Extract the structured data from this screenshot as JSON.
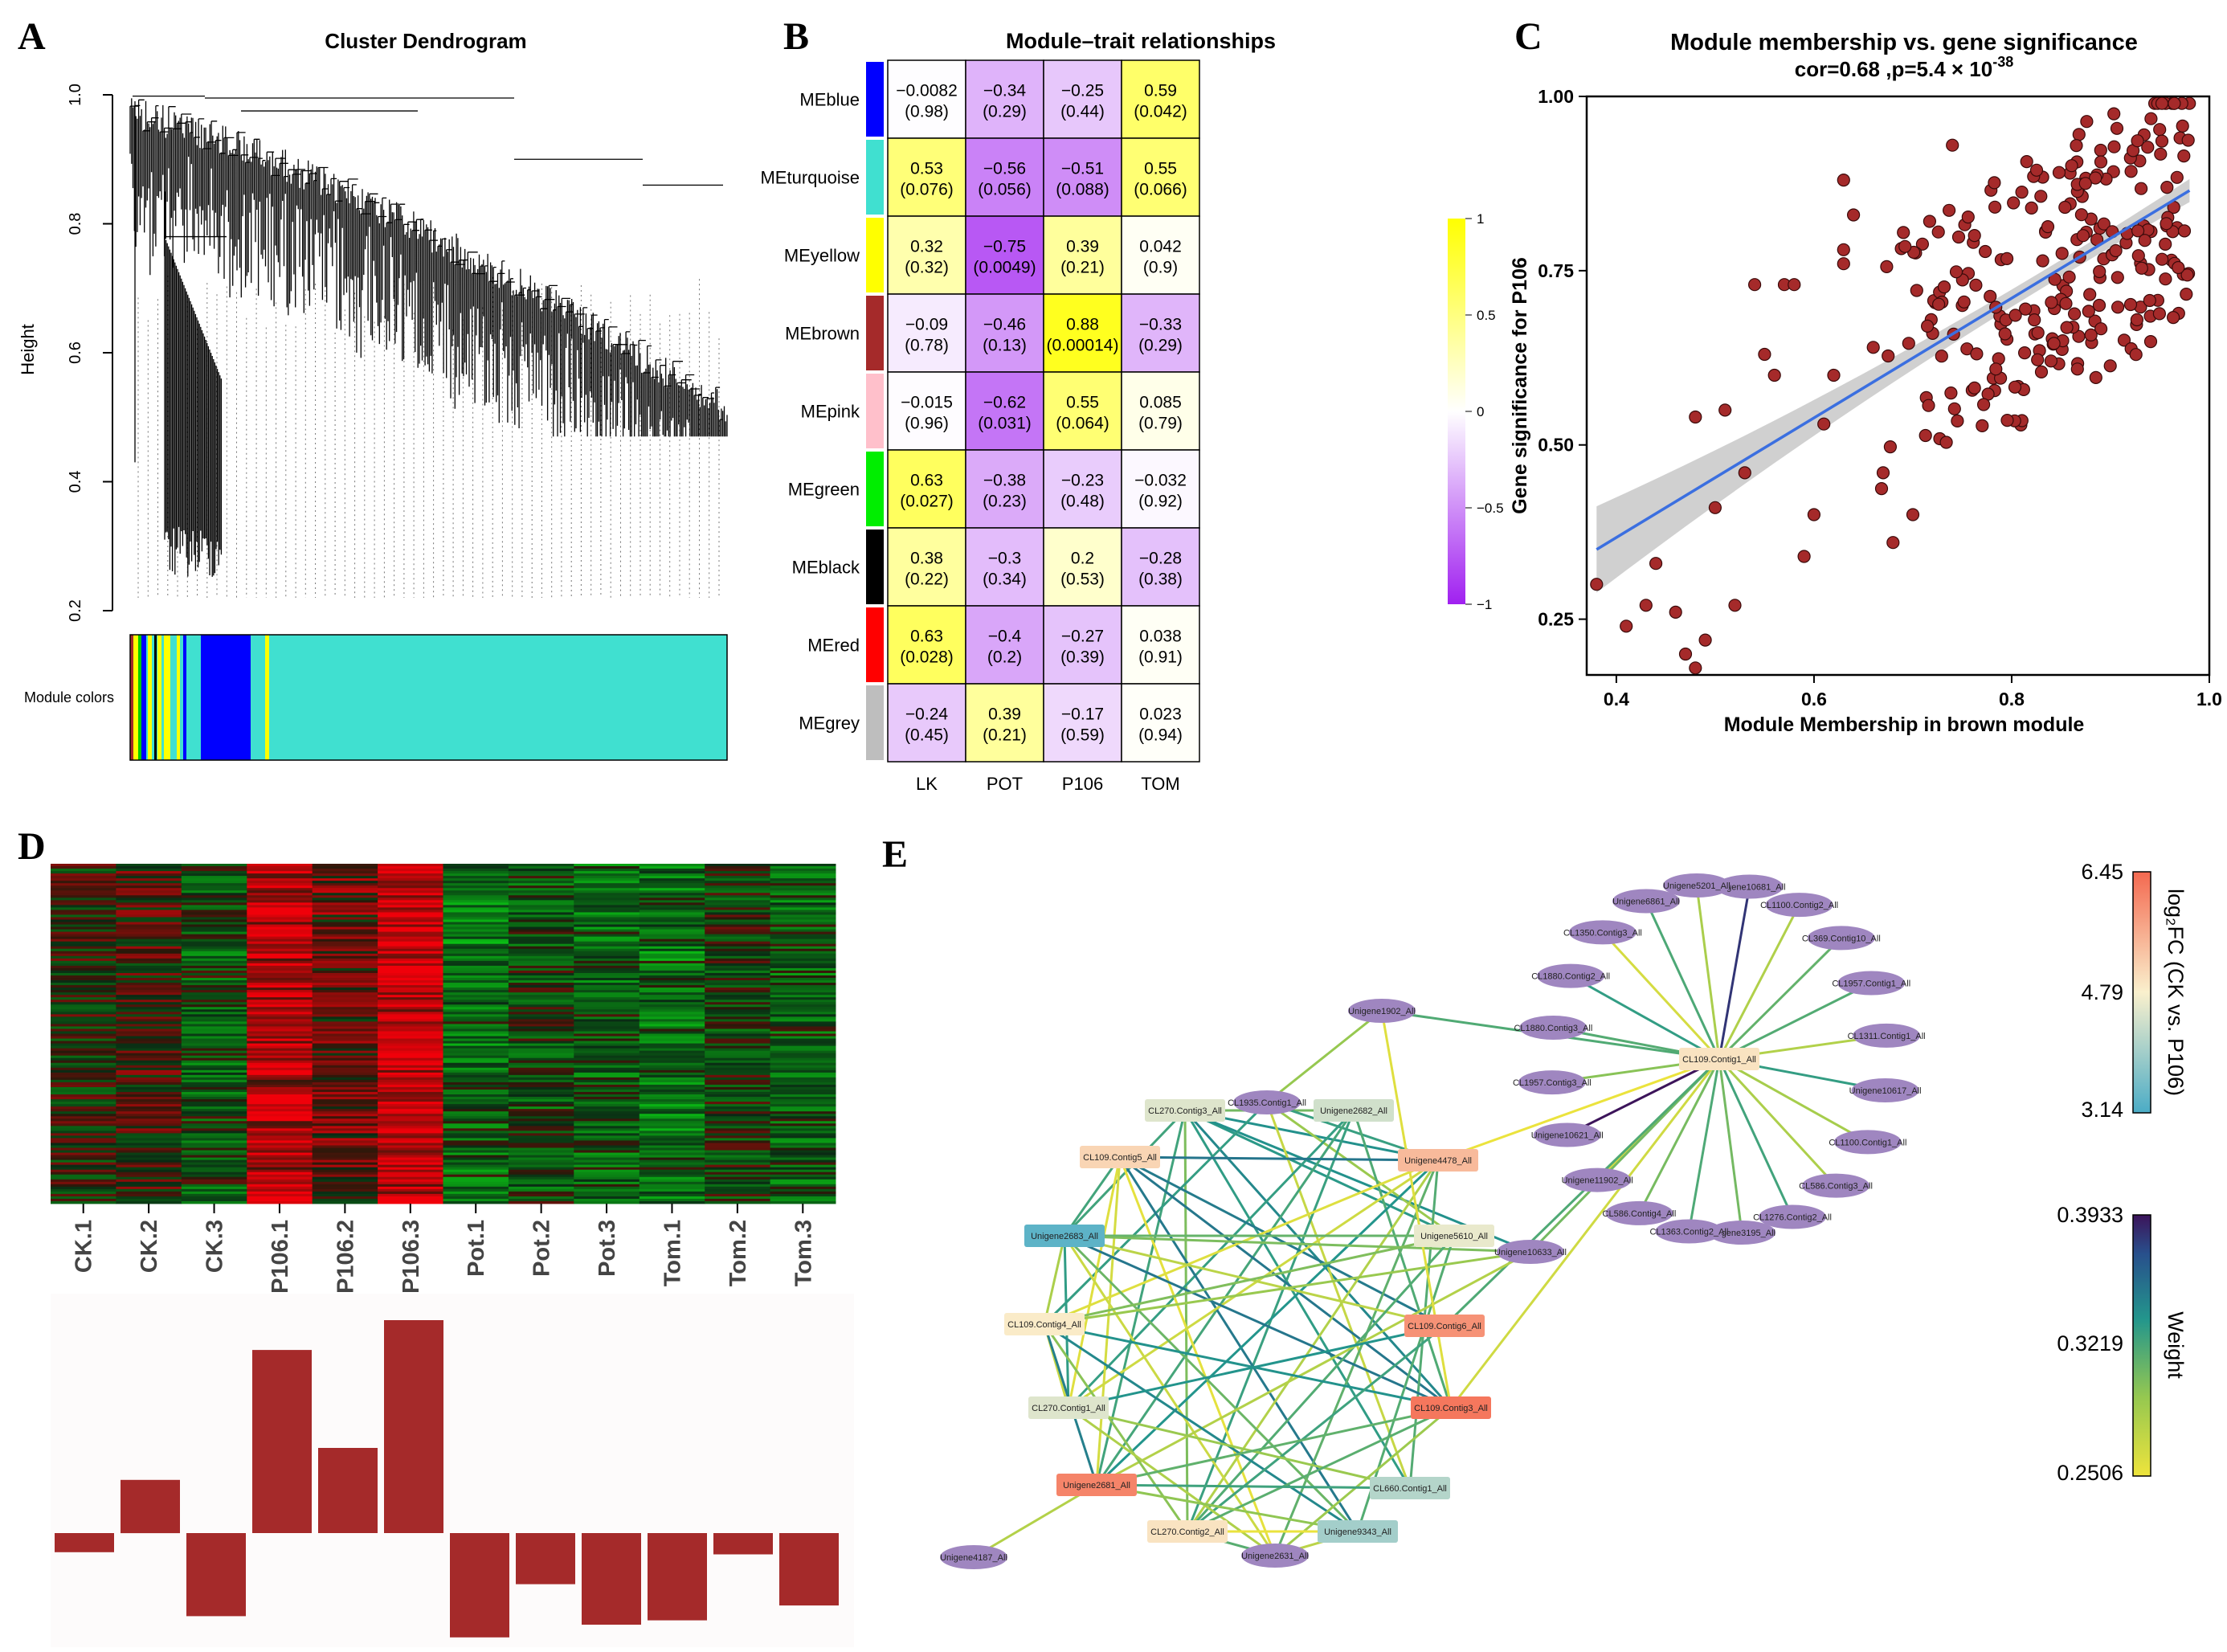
{
  "letters": {
    "a": "A",
    "b": "B",
    "c": "C",
    "d": "D",
    "e": "E"
  },
  "panel_a": {
    "title": "Cluster Dendrogram",
    "ylabel": "Height",
    "module_colors_label": "Module colors",
    "yticks": [
      "0.2",
      "0.4",
      "0.6",
      "0.8",
      "1.0"
    ],
    "colors": {
      "turquoise": "#40e0d0",
      "blue": "#0000ff",
      "yellow": "#ffff00",
      "brown": "#a52a2a",
      "green": "#00cc00",
      "black": "#000000"
    }
  },
  "panel_b": {
    "title": "Module–trait relationships",
    "columns": [
      "LK",
      "POT",
      "P106",
      "TOM"
    ],
    "rows": [
      {
        "label": "MEblue",
        "color": "#0000ff",
        "cells": [
          {
            "cor": "−0.0082",
            "p": "(0.98)",
            "v": -0.0082
          },
          {
            "cor": "−0.34",
            "p": "(0.29)",
            "v": -0.34
          },
          {
            "cor": "−0.25",
            "p": "(0.44)",
            "v": -0.25
          },
          {
            "cor": "0.59",
            "p": "(0.042)",
            "v": 0.59
          }
        ]
      },
      {
        "label": "MEturquoise",
        "color": "#40e0d0",
        "cells": [
          {
            "cor": "0.53",
            "p": "(0.076)",
            "v": 0.53
          },
          {
            "cor": "−0.56",
            "p": "(0.056)",
            "v": -0.56
          },
          {
            "cor": "−0.51",
            "p": "(0.088)",
            "v": -0.51
          },
          {
            "cor": "0.55",
            "p": "(0.066)",
            "v": 0.55
          }
        ]
      },
      {
        "label": "MEyellow",
        "color": "#ffff00",
        "cells": [
          {
            "cor": "0.32",
            "p": "(0.32)",
            "v": 0.32
          },
          {
            "cor": "−0.75",
            "p": "(0.0049)",
            "v": -0.75
          },
          {
            "cor": "0.39",
            "p": "(0.21)",
            "v": 0.39
          },
          {
            "cor": "0.042",
            "p": "(0.9)",
            "v": 0.042
          }
        ]
      },
      {
        "label": "MEbrown",
        "color": "#a52a2a",
        "cells": [
          {
            "cor": "−0.09",
            "p": "(0.78)",
            "v": -0.09
          },
          {
            "cor": "−0.46",
            "p": "(0.13)",
            "v": -0.46
          },
          {
            "cor": "0.88",
            "p": "(0.00014)",
            "v": 0.88
          },
          {
            "cor": "−0.33",
            "p": "(0.29)",
            "v": -0.33
          }
        ]
      },
      {
        "label": "MEpink",
        "color": "#ffc0cb",
        "cells": [
          {
            "cor": "−0.015",
            "p": "(0.96)",
            "v": -0.015
          },
          {
            "cor": "−0.62",
            "p": "(0.031)",
            "v": -0.62
          },
          {
            "cor": "0.55",
            "p": "(0.064)",
            "v": 0.55
          },
          {
            "cor": "0.085",
            "p": "(0.79)",
            "v": 0.085
          }
        ]
      },
      {
        "label": "MEgreen",
        "color": "#00ee00",
        "cells": [
          {
            "cor": "0.63",
            "p": "(0.027)",
            "v": 0.63
          },
          {
            "cor": "−0.38",
            "p": "(0.23)",
            "v": -0.38
          },
          {
            "cor": "−0.23",
            "p": "(0.48)",
            "v": -0.23
          },
          {
            "cor": "−0.032",
            "p": "(0.92)",
            "v": -0.032
          }
        ]
      },
      {
        "label": "MEblack",
        "color": "#000000",
        "cells": [
          {
            "cor": "0.38",
            "p": "(0.22)",
            "v": 0.38
          },
          {
            "cor": "−0.3",
            "p": "(0.34)",
            "v": -0.3
          },
          {
            "cor": "0.2",
            "p": "(0.53)",
            "v": 0.2
          },
          {
            "cor": "−0.28",
            "p": "(0.38)",
            "v": -0.28
          }
        ]
      },
      {
        "label": "MEred",
        "color": "#ff0000",
        "cells": [
          {
            "cor": "0.63",
            "p": "(0.028)",
            "v": 0.63
          },
          {
            "cor": "−0.4",
            "p": "(0.2)",
            "v": -0.4
          },
          {
            "cor": "−0.27",
            "p": "(0.39)",
            "v": -0.27
          },
          {
            "cor": "0.038",
            "p": "(0.91)",
            "v": 0.038
          }
        ]
      },
      {
        "label": "MEgrey",
        "color": "#bebebe",
        "cells": [
          {
            "cor": "−0.24",
            "p": "(0.45)",
            "v": -0.24
          },
          {
            "cor": "0.39",
            "p": "(0.21)",
            "v": 0.39
          },
          {
            "cor": "−0.17",
            "p": "(0.59)",
            "v": -0.17
          },
          {
            "cor": "0.023",
            "p": "(0.94)",
            "v": 0.023
          }
        ]
      }
    ],
    "legend_ticks": [
      "1",
      "0.5",
      "0",
      "−0.5",
      "−1"
    ]
  },
  "chart_data": [
    {
      "panel": "C",
      "type": "scatter",
      "title": "Module membership vs. gene significance",
      "subtitle_prefix": "cor=0.68 ,p=5.4 × 10",
      "subtitle_exp": "-38",
      "xlabel": "Module Membership in brown module",
      "ylabel": "Gene significance for  P106",
      "xlim": [
        0.37,
        1.0
      ],
      "ylim": [
        0.17,
        1.0
      ],
      "xticks": [
        "0.4",
        "0.6",
        "0.8",
        "1.0"
      ],
      "yticks": [
        "0.25",
        "0.50",
        "0.75",
        "1.00"
      ],
      "fit_line": {
        "x": [
          0.38,
          0.98
        ],
        "y": [
          0.35,
          0.865
        ]
      },
      "point_color": "#a52a2a"
    },
    {
      "panel": "D",
      "type": "bar",
      "categories": [
        "CK.1",
        "CK.2",
        "CK.3",
        "P106.1",
        "P106.2",
        "P106.3",
        "Pot.1",
        "Pot.2",
        "Pot.3",
        "Tom.1",
        "Tom.2",
        "Tom.3"
      ],
      "values": [
        -0.09,
        0.25,
        -0.39,
        0.86,
        0.4,
        1.0,
        -0.49,
        -0.24,
        -0.43,
        -0.41,
        -0.1,
        -0.34
      ],
      "bar_color": "#a52a2a",
      "heatmap_bias": [
        0.0,
        0.15,
        -0.25,
        0.7,
        0.3,
        0.85,
        -0.45,
        -0.2,
        -0.35,
        -0.4,
        -0.1,
        -0.3
      ]
    }
  ],
  "panel_e": {
    "hub": "CL109.Contig1_All",
    "outer_nodes": [
      "Unigene10681_All",
      "CL1100.Contig2_All",
      "CL369.Contig10_All",
      "CL1957.Contig1_All",
      "CL1311.Contig1_All",
      "Unigene10617_All",
      "CL1100.Contig1_All",
      "CL586.Contig3_All",
      "CL1276.Contig2_All",
      "Unigene3195_All",
      "CL1363.Contig2_All",
      "CL586.Contig4_All",
      "Unigene11902_All",
      "Unigene10621_All",
      "CL1957.Contig3_All",
      "CL1880.Contig3_All",
      "CL1880.Contig2_All",
      "CL1350.Contig3_All",
      "Unigene6861_All",
      "Unigene5201_All"
    ],
    "cluster_nodes": [
      "Unigene1902_All",
      "CL270.Contig3_All",
      "CL1935.Contig1_All",
      "Unigene2682_All",
      "CL109.Contig5_All",
      "Unigene4478_All",
      "Unigene2683_All",
      "Unigene5610_All",
      "Unigene10633_All",
      "CL109.Contig4_All",
      "CL109.Contig6_All",
      "CL270.Contig1_All",
      "CL109.Contig3_All",
      "Unigene2681_All",
      "CL660.Contig1_All",
      "Unigene4187_All",
      "CL270.Contig2_All",
      "Unigene2631_All",
      "Unigene9343_All"
    ],
    "fc_legend": {
      "title": "log₂FC (CK vs. P106)",
      "max": "6.45",
      "mid": "4.79",
      "min": "3.14"
    },
    "weight_legend": {
      "title": "Weight",
      "max": "0.3933",
      "mid": "0.3219",
      "min": "0.2506"
    }
  }
}
